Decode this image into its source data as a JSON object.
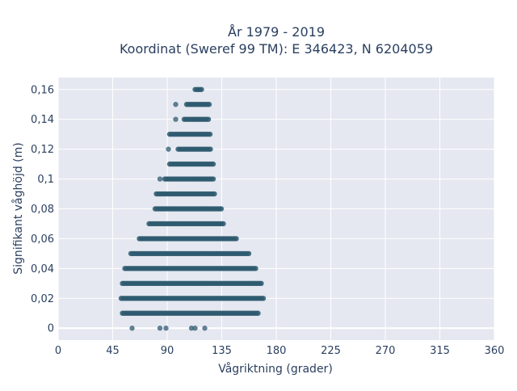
{
  "chart_data": {
    "type": "scatter",
    "title_line1": "År 1979 - 2019",
    "title_line2": "Koordinat (Sweref 99 TM): E 346423, N 6204059",
    "xlabel": "Vågriktning (grader)",
    "ylabel": "Signifikant våghöjd (m)",
    "xlim": [
      0,
      360
    ],
    "ylim": [
      -0.008,
      0.168
    ],
    "x_ticks": [
      0,
      45,
      90,
      135,
      180,
      225,
      270,
      315,
      360
    ],
    "x_tick_labels": [
      "0",
      "45",
      "90",
      "135",
      "180",
      "225",
      "270",
      "315",
      "360"
    ],
    "y_ticks": [
      0,
      0.02,
      0.04,
      0.06,
      0.08,
      0.1,
      0.12,
      0.14,
      0.16
    ],
    "y_tick_labels": [
      "0",
      "0,02",
      "0,04",
      "0,06",
      "0,08",
      "0,1",
      "0,12",
      "0,14",
      "0,16"
    ],
    "grid": true,
    "marker_color": "#2f5a70",
    "background_color": "#e5e8f0",
    "bands": [
      {
        "y": 0.0,
        "isolated_x": [
          61,
          84,
          89,
          110,
          113,
          121
        ]
      },
      {
        "y": 0.01,
        "x_range": [
          53,
          166
        ]
      },
      {
        "y": 0.02,
        "x_range": [
          52,
          170
        ]
      },
      {
        "y": 0.03,
        "x_range": [
          53,
          168
        ]
      },
      {
        "y": 0.04,
        "x_range": [
          55,
          164
        ]
      },
      {
        "y": 0.05,
        "x_range": [
          60,
          158
        ]
      },
      {
        "y": 0.06,
        "x_range": [
          67,
          147
        ]
      },
      {
        "y": 0.07,
        "x_range": [
          75,
          137
        ]
      },
      {
        "y": 0.08,
        "x_range": [
          80,
          135
        ]
      },
      {
        "y": 0.09,
        "x_range": [
          81,
          130
        ]
      },
      {
        "y": 0.1,
        "x_range": [
          88,
          129
        ],
        "isolated_x": [
          84
        ]
      },
      {
        "y": 0.11,
        "x_range": [
          92,
          128
        ]
      },
      {
        "y": 0.12,
        "x_range": [
          99,
          126
        ],
        "isolated_x": [
          91
        ]
      },
      {
        "y": 0.13,
        "x_range": [
          92,
          126
        ]
      },
      {
        "y": 0.14,
        "x_range": [
          104,
          125
        ],
        "isolated_x": [
          97
        ]
      },
      {
        "y": 0.15,
        "x_range": [
          106,
          125
        ],
        "isolated_x": [
          97
        ]
      },
      {
        "y": 0.16,
        "x_range": [
          113,
          119
        ]
      }
    ]
  }
}
